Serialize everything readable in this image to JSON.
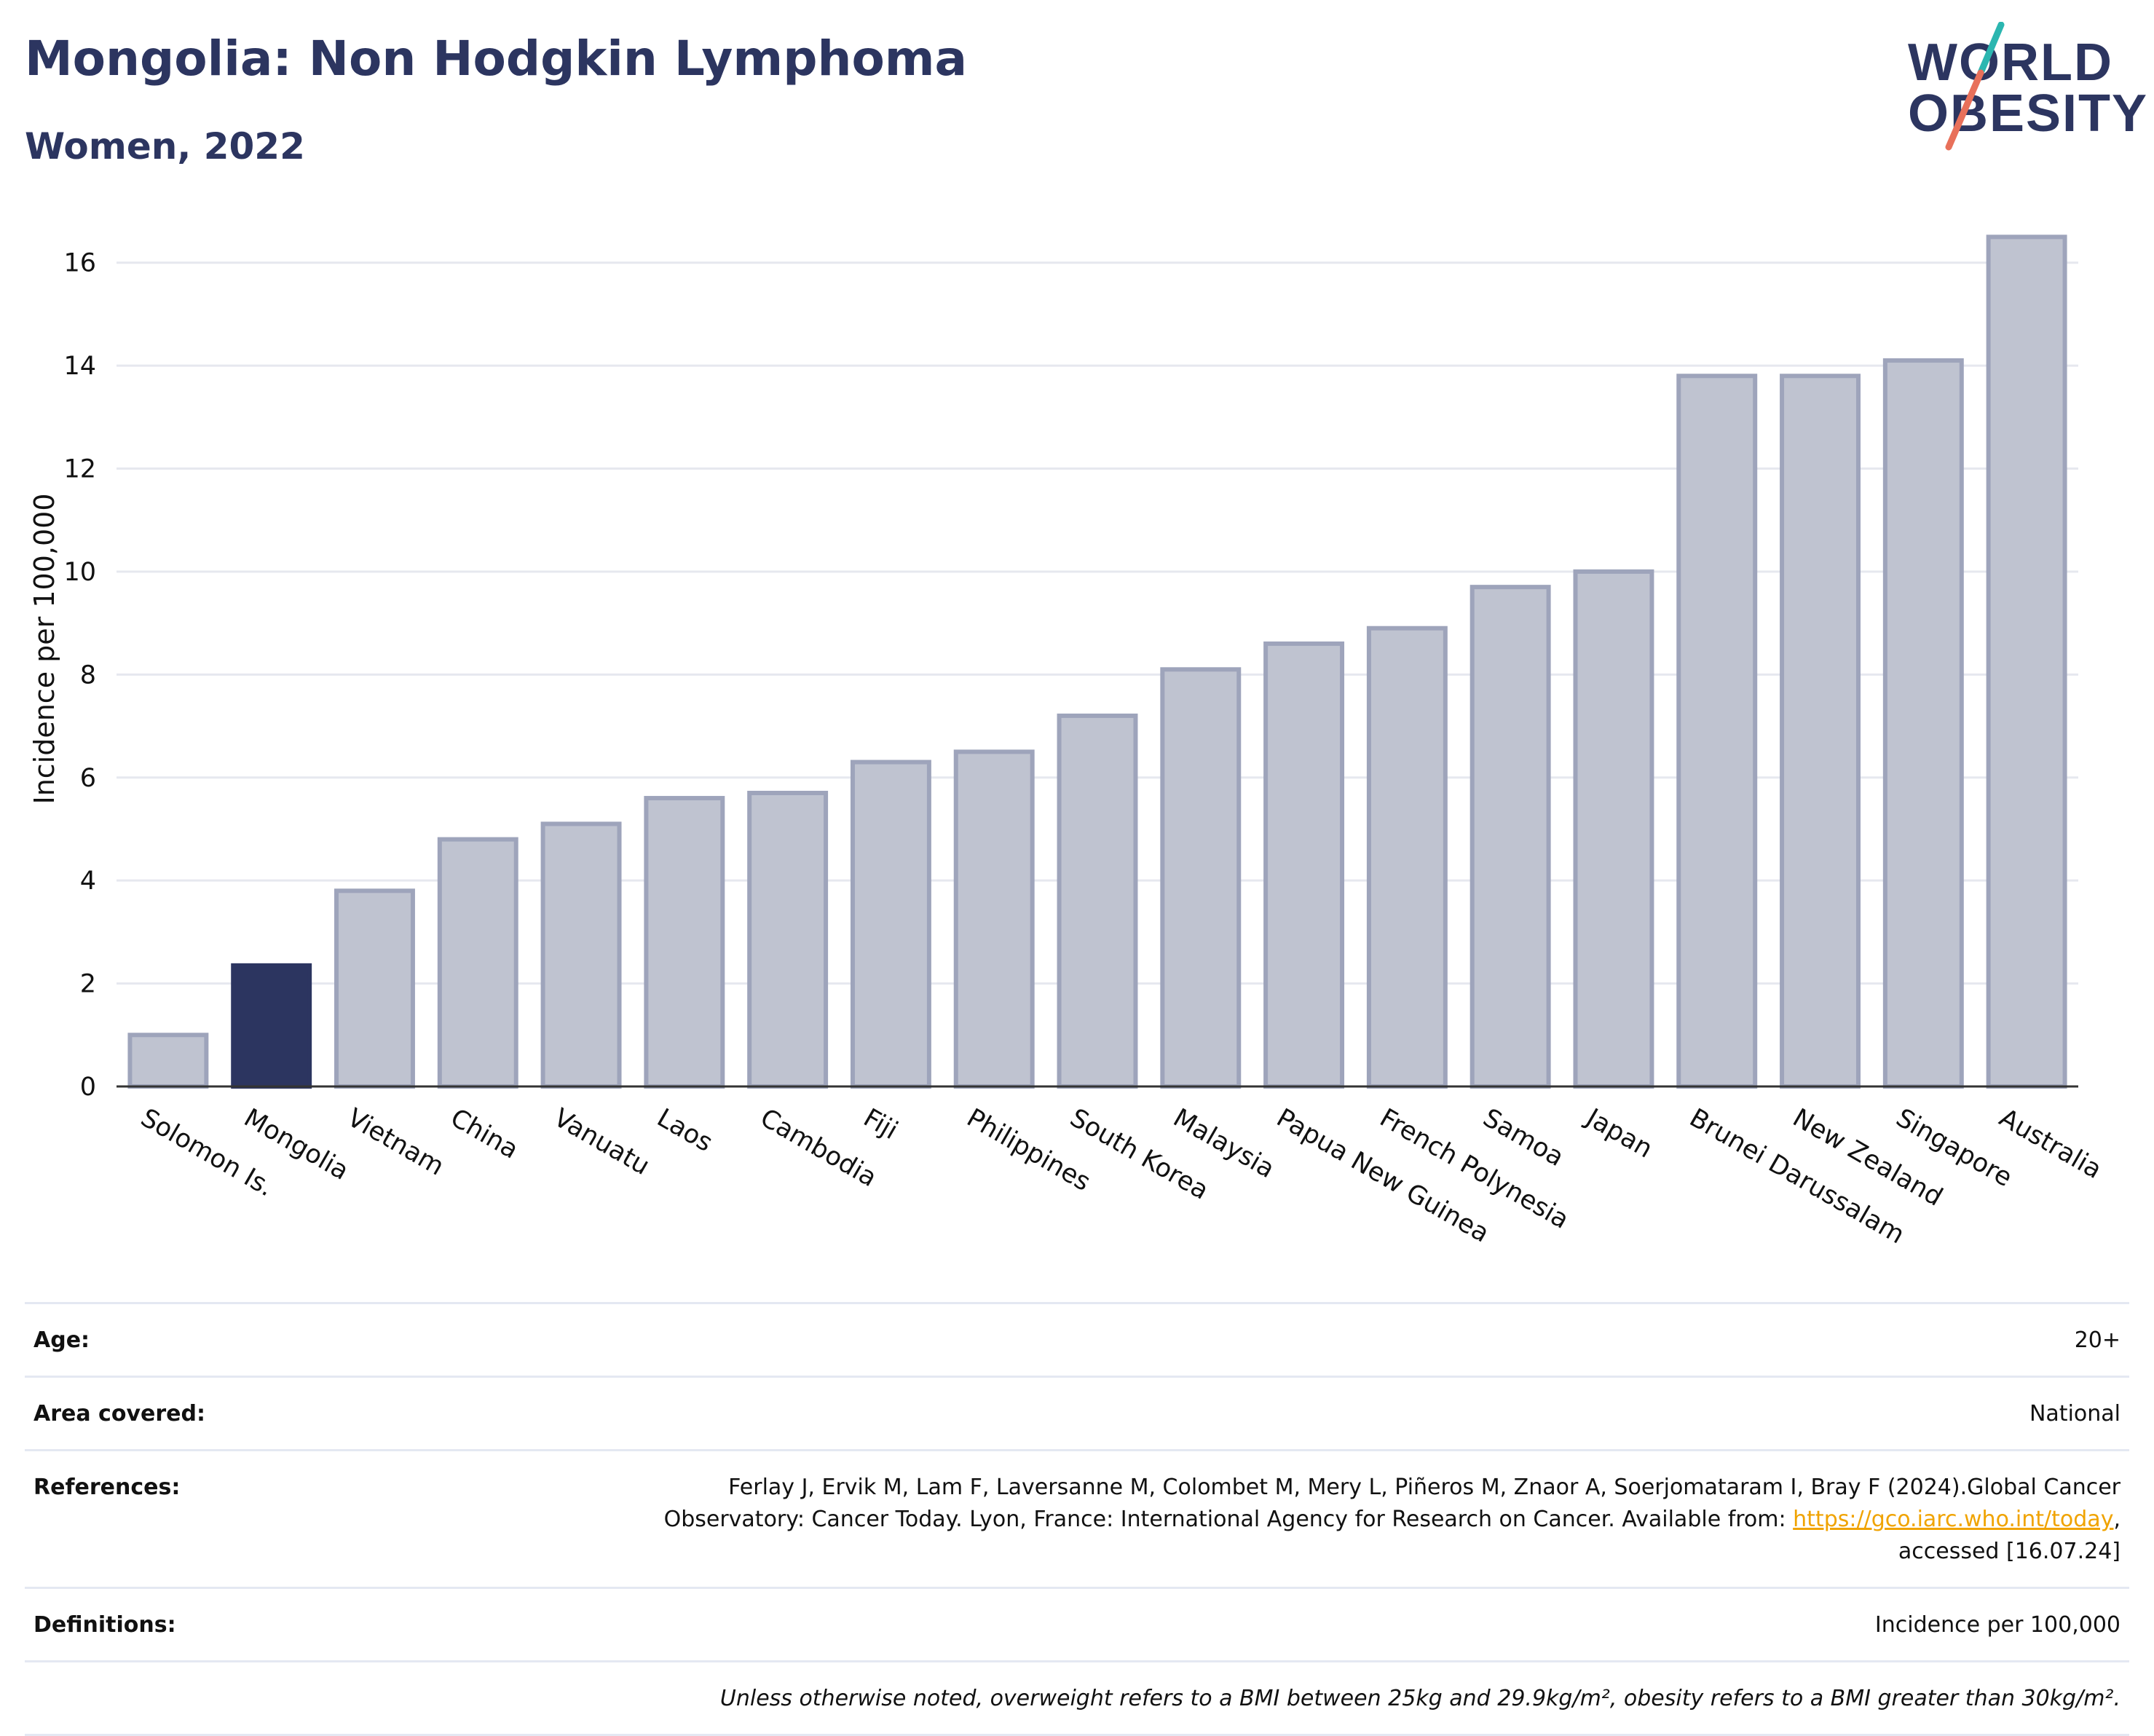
{
  "header": {
    "title": "Mongolia: Non Hodgkin Lymphoma",
    "subtitle": "Women, 2022"
  },
  "logo": {
    "line1": "WORLD",
    "line2": "OBESITY"
  },
  "colors": {
    "highlight": "#2c3560",
    "bar_fill": "#bfc3d0",
    "bar_stroke": "#9ea4bb",
    "logo_teal": "#2bb6b0",
    "logo_coral": "#e8705a",
    "link": "#f0a300"
  },
  "chart_data": {
    "type": "bar",
    "title": "Mongolia: Non Hodgkin Lymphoma",
    "subtitle": "Women, 2022",
    "xlabel": "",
    "ylabel": "Incidence per 100,000",
    "ylim": [
      0,
      17
    ],
    "yticks": [
      0,
      2,
      4,
      6,
      8,
      10,
      12,
      14,
      16
    ],
    "grid": true,
    "highlight_category": "Mongolia",
    "categories": [
      "Solomon Is.",
      "Mongolia",
      "Vietnam",
      "China",
      "Vanuatu",
      "Laos",
      "Cambodia",
      "Fiji",
      "Philippines",
      "South Korea",
      "Malaysia",
      "Papua New Guinea",
      "French Polynesia",
      "Samoa",
      "Japan",
      "Brunei Darussalam",
      "New Zealand",
      "Singapore",
      "Australia"
    ],
    "values": [
      1.0,
      2.35,
      3.8,
      4.8,
      5.1,
      5.6,
      5.7,
      6.3,
      6.5,
      7.2,
      8.1,
      8.6,
      8.9,
      9.7,
      10.0,
      13.8,
      13.8,
      14.1,
      16.5
    ]
  },
  "info": {
    "age_label": "Age:",
    "age_value": "20+",
    "area_label": "Area covered:",
    "area_value": "National",
    "references_label": "References:",
    "references_line1": "Ferlay J, Ervik M, Lam F, Laversanne M, Colombet M, Mery L, Piñeros M, Znaor A, Soerjomataram I, Bray F (2024).Global Cancer",
    "references_line2": "Observatory: Cancer Today. Lyon, France: International Agency for Research on Cancer. Available from:",
    "references_link": "https://gco.iarc.who.int/today",
    "references_line3": "accessed [16.07.24]",
    "definitions_label": "Definitions:",
    "definitions_value": "Incidence per 100,000",
    "note": "Unless otherwise noted, overweight refers to a BMI between 25kg and 29.9kg/m², obesity refers to a BMI greater than 30kg/m²."
  }
}
